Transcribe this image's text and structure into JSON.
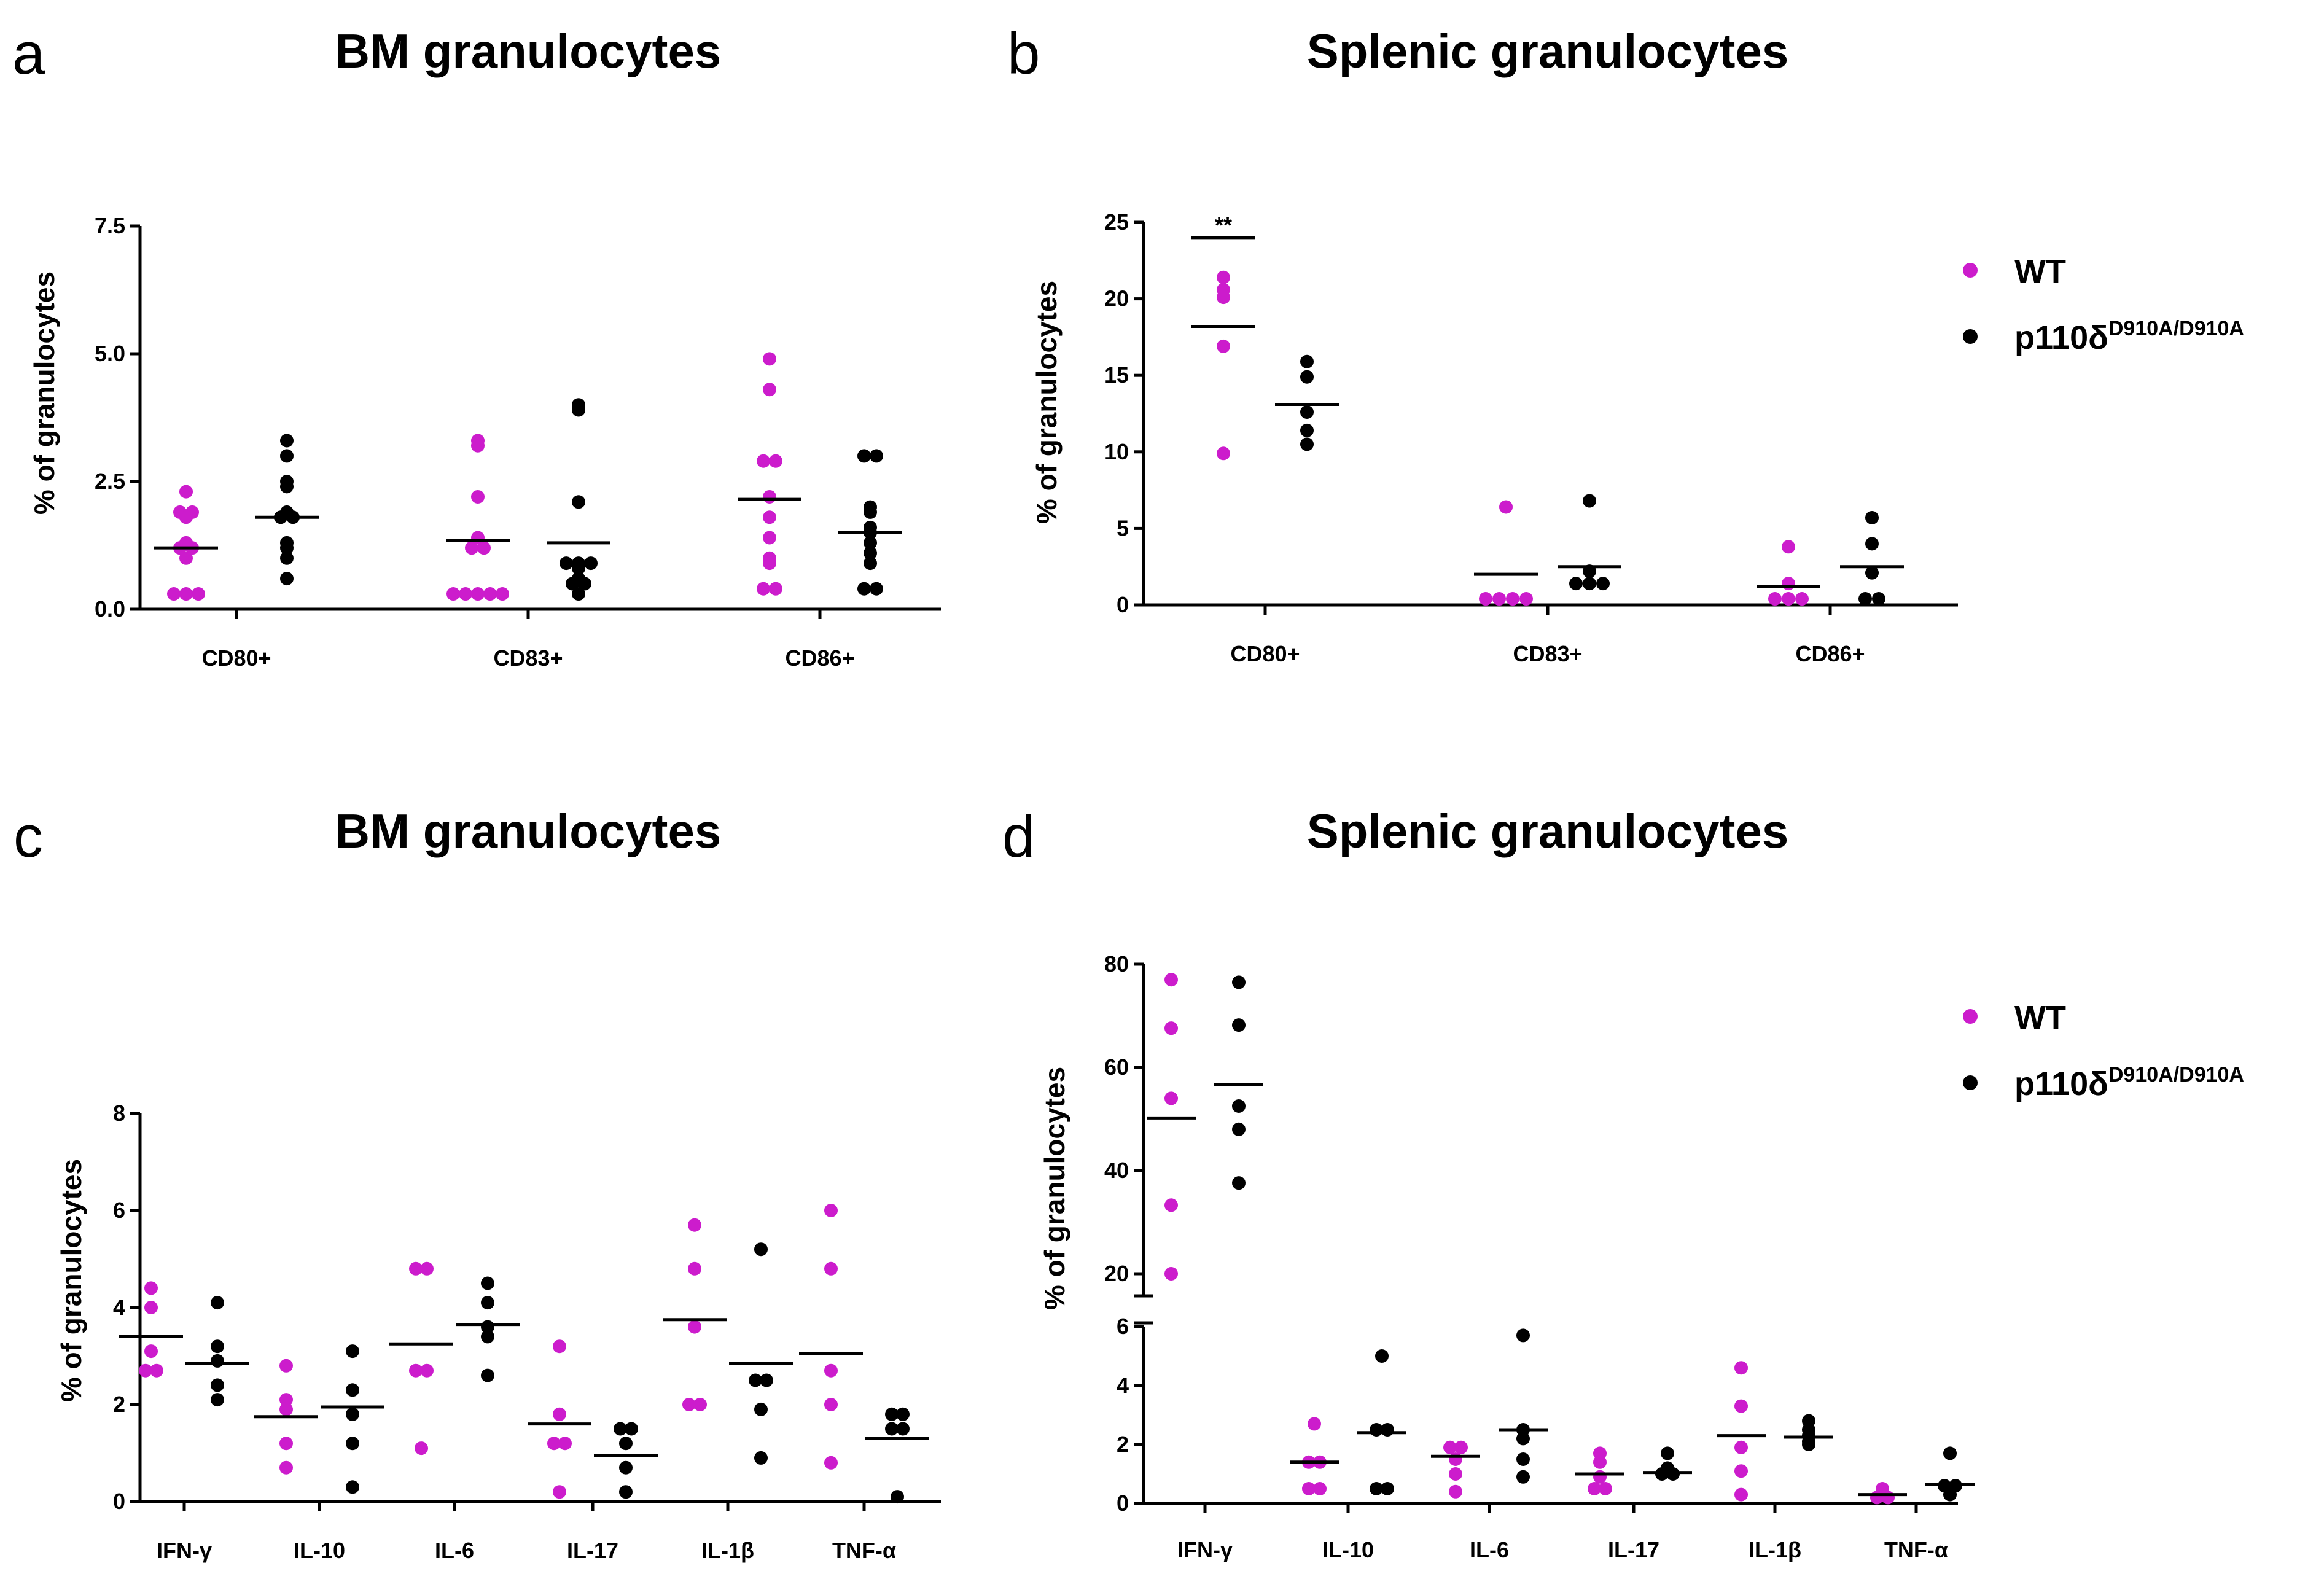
{
  "colors": {
    "wt": "#cc1ccc",
    "mut": "#000000"
  },
  "legend": {
    "wt_label": "WT",
    "mut_label": "p110δ",
    "mut_sup": "D910A/D910A"
  },
  "chart_data": [
    {
      "id": "a",
      "letter": "a",
      "type": "scatter",
      "title": "BM granulocytes",
      "ylabel": "% of granulocytes",
      "ylim": [
        0,
        7.5
      ],
      "yticks": [
        0,
        2.5,
        5,
        7.5
      ],
      "ytick_labels": [
        "0.0",
        "2.5",
        "5.0",
        "7.5"
      ],
      "categories": [
        "CD80+",
        "CD83+",
        "CD86+"
      ],
      "series": [
        {
          "name": "WT",
          "values": [
            [
              2.3,
              1.9,
              1.9,
              1.8,
              1.3,
              1.2,
              1.2,
              1.0,
              0.3,
              0.3,
              0.3
            ],
            [
              3.3,
              3.2,
              2.2,
              1.4,
              1.2,
              1.2,
              0.3,
              0.3,
              0.3,
              0.3,
              0.3
            ],
            [
              4.9,
              4.3,
              2.9,
              2.9,
              2.2,
              1.8,
              1.4,
              1.0,
              0.9,
              0.4,
              0.4
            ]
          ],
          "means": [
            1.2,
            1.35,
            2.15
          ]
        },
        {
          "name": "p110δD910A/D910A",
          "values": [
            [
              3.3,
              3.0,
              2.5,
              2.4,
              1.9,
              1.8,
              1.8,
              1.3,
              1.2,
              1.0,
              0.6
            ],
            [
              4.0,
              3.9,
              2.1,
              0.9,
              0.9,
              0.9,
              0.8,
              0.6,
              0.5,
              0.5,
              0.3
            ],
            [
              3.0,
              3.0,
              2.0,
              1.9,
              1.6,
              1.5,
              1.3,
              1.1,
              0.9,
              0.4,
              0.4
            ]
          ],
          "means": [
            1.8,
            1.3,
            1.5
          ]
        }
      ]
    },
    {
      "id": "b",
      "letter": "b",
      "type": "scatter",
      "title": "Splenic granulocytes",
      "ylabel": "% of granulocytes",
      "ylim": [
        0,
        25
      ],
      "yticks": [
        0,
        5,
        10,
        15,
        20,
        25
      ],
      "ytick_labels": [
        "0",
        "5",
        "10",
        "15",
        "20",
        "25"
      ],
      "categories": [
        "CD80+",
        "CD83+",
        "CD86+"
      ],
      "annotation": {
        "text": "**",
        "category": 0,
        "y": 24
      },
      "series": [
        {
          "name": "WT",
          "values": [
            [
              21.4,
              20.6,
              20.1,
              16.9,
              9.9
            ],
            [
              6.4,
              0.4,
              0.4,
              0.4,
              0.4
            ],
            [
              3.8,
              1.4,
              0.4,
              0.4,
              0.4
            ]
          ],
          "means": [
            18.2,
            2.0,
            1.2
          ]
        },
        {
          "name": "p110δD910A/D910A",
          "values": [
            [
              15.9,
              14.9,
              12.6,
              11.4,
              10.5
            ],
            [
              6.8,
              2.2,
              1.4,
              1.4,
              1.4
            ],
            [
              5.7,
              4.0,
              2.1,
              0.4,
              0.4
            ]
          ],
          "means": [
            13.1,
            2.5,
            2.5
          ]
        }
      ]
    },
    {
      "id": "c",
      "letter": "c",
      "type": "scatter",
      "title": "BM granulocytes",
      "ylabel": "% of granulocytes",
      "ylim": [
        0,
        8
      ],
      "yticks": [
        0,
        2,
        4,
        6,
        8
      ],
      "ytick_labels": [
        "0",
        "2",
        "4",
        "6",
        "8"
      ],
      "categories": [
        "IFN-γ",
        "IL-10",
        "IL-6",
        "IL-17",
        "IL-1β",
        "TNF-α"
      ],
      "series": [
        {
          "name": "WT",
          "values": [
            [
              4.4,
              4.0,
              3.1,
              2.7,
              2.7
            ],
            [
              2.8,
              2.1,
              1.9,
              1.2,
              0.7
            ],
            [
              4.8,
              4.8,
              2.7,
              2.7,
              1.1
            ],
            [
              3.2,
              1.8,
              1.2,
              1.2,
              0.2
            ],
            [
              5.7,
              4.8,
              3.6,
              2.0,
              2.0
            ],
            [
              6.0,
              4.8,
              2.7,
              2.0,
              0.8
            ]
          ],
          "means": [
            3.4,
            1.75,
            3.25,
            1.6,
            3.75,
            3.05
          ]
        },
        {
          "name": "p110δD910A/D910A",
          "values": [
            [
              4.1,
              3.2,
              2.9,
              2.4,
              2.1
            ],
            [
              3.1,
              2.3,
              1.8,
              1.2,
              0.3
            ],
            [
              4.5,
              4.1,
              3.6,
              3.4,
              2.6
            ],
            [
              1.5,
              1.5,
              1.2,
              0.7,
              0.2
            ],
            [
              5.2,
              2.5,
              2.5,
              1.9,
              0.9
            ],
            [
              1.8,
              1.8,
              1.5,
              1.5,
              0.1
            ]
          ],
          "means": [
            2.85,
            1.95,
            3.65,
            0.95,
            2.85,
            1.3
          ]
        }
      ]
    },
    {
      "id": "d",
      "letter": "d",
      "type": "scatter",
      "title": "Splenic granulocytes",
      "ylabel": "% of granulocytes",
      "broken_axis": {
        "lower": [
          0,
          6
        ],
        "upper": [
          20,
          80
        ]
      },
      "yticks_lower": [
        0,
        2,
        4,
        6
      ],
      "ytick_labels_lower": [
        "0",
        "2",
        "4",
        "6"
      ],
      "yticks_upper": [
        20,
        40,
        60,
        80
      ],
      "ytick_labels_upper": [
        "20",
        "40",
        "60",
        "80"
      ],
      "categories": [
        "IFN-γ",
        "IL-10",
        "IL-6",
        "IL-17",
        "IL-1β",
        "TNF-α"
      ],
      "series": [
        {
          "name": "WT",
          "values": [
            [
              77.0,
              67.6,
              54.0,
              33.3,
              18.8
            ],
            [
              2.7,
              1.4,
              1.4,
              0.5,
              0.5
            ],
            [
              1.9,
              1.9,
              1.5,
              1.0,
              0.4
            ],
            [
              1.7,
              1.4,
              0.9,
              0.5,
              0.5
            ],
            [
              4.6,
              3.3,
              1.9,
              1.1,
              0.3
            ],
            [
              0.5,
              0.4,
              0.3,
              0.2,
              0.2
            ]
          ],
          "means": [
            50.2,
            1.4,
            1.6,
            1.0,
            2.3,
            0.3
          ]
        },
        {
          "name": "p110δD910A/D910A",
          "values": [
            [
              76.5,
              68.2,
              52.5,
              48.0,
              37.6
            ],
            [
              5.0,
              2.5,
              2.5,
              0.5,
              0.5
            ],
            [
              5.7,
              2.5,
              2.2,
              1.5,
              0.9
            ],
            [
              1.7,
              1.2,
              1.1,
              1.0,
              1.0
            ],
            [
              2.8,
              2.5,
              2.3,
              2.1,
              2.0
            ],
            [
              1.7,
              0.6,
              0.6,
              0.5,
              0.3
            ]
          ],
          "means": [
            56.7,
            2.4,
            2.5,
            1.05,
            2.25,
            0.65
          ]
        }
      ]
    }
  ]
}
